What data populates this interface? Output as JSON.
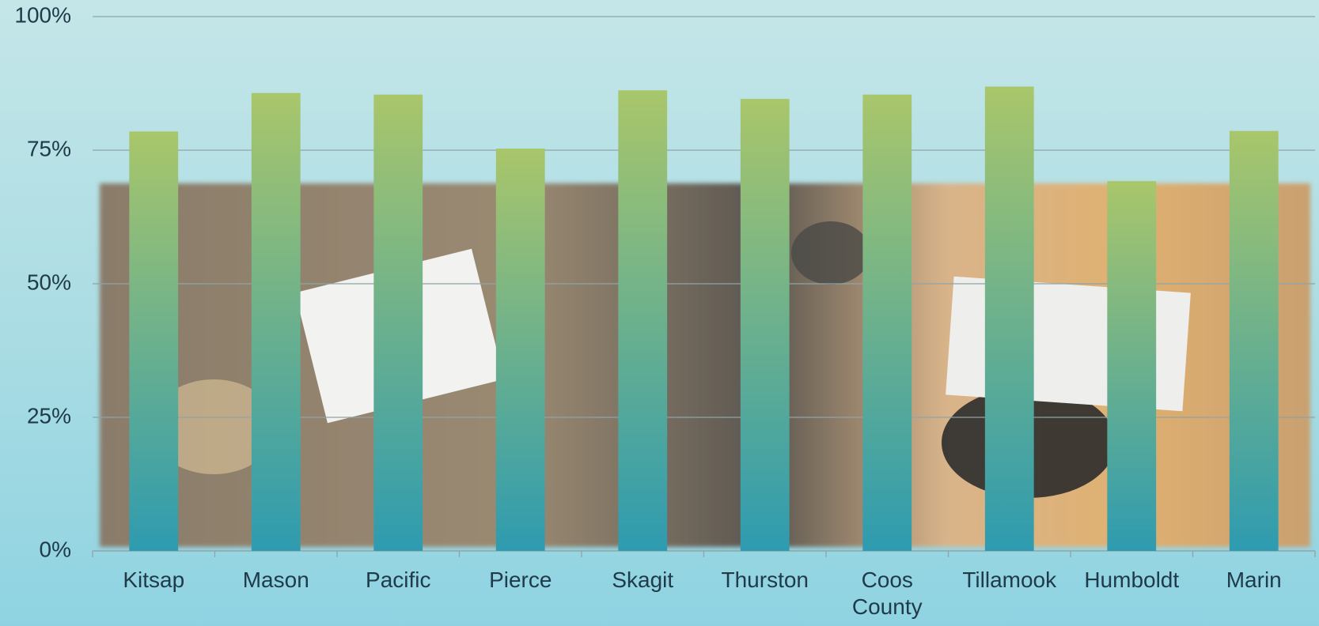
{
  "chart_data": {
    "type": "bar",
    "categories": [
      "Kitsap",
      "Mason",
      "Pacific",
      "Pierce",
      "Skagit",
      "Thurston",
      "Coos County",
      "Tillamook",
      "Humboldt",
      "Marin"
    ],
    "values": [
      78.5,
      85.7,
      85.4,
      75.3,
      86.2,
      84.6,
      85.4,
      86.9,
      69.2,
      78.6
    ],
    "color": [
      "#a9c66a",
      "#2e9bb0"
    ],
    "ylim": [
      0,
      100
    ],
    "yticks": [
      {
        "value": 0,
        "label": "0%"
      },
      {
        "value": 25,
        "label": "25%"
      },
      {
        "value": 50,
        "label": "50%"
      },
      {
        "value": 75,
        "label": "75%"
      },
      {
        "value": 100,
        "label": "100%"
      }
    ],
    "grid": true
  }
}
